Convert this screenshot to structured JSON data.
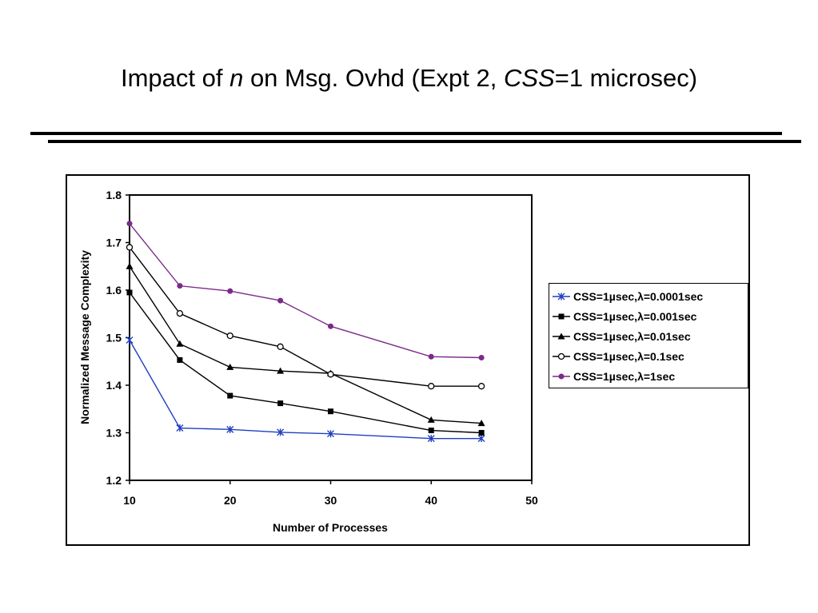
{
  "slide": {
    "title_part1": "Impact of ",
    "title_italic_n": "n",
    "title_part2": " on Msg. Ovhd (Expt 2, ",
    "title_italic_css": "CSS",
    "title_part3": "=1 microsec)"
  },
  "chart_data": {
    "type": "line",
    "title": "",
    "xlabel": "Number of Processes",
    "ylabel": "Normalized Message Complexity",
    "xlim": [
      10,
      50
    ],
    "ylim": [
      1.2,
      1.8
    ],
    "xticks": [
      "10",
      "20",
      "30",
      "40",
      "50"
    ],
    "yticks": [
      "1.2",
      "1.3",
      "1.4",
      "1.5",
      "1.6",
      "1.7",
      "1.8"
    ],
    "x": [
      10,
      15,
      20,
      25,
      30,
      40,
      45
    ],
    "legend_position": "right",
    "series": [
      {
        "name": "CSS=1µsec,λ=0.0001sec",
        "color": "#1f3fbf",
        "marker": "star",
        "values": [
          1.495,
          1.31,
          1.307,
          1.301,
          1.298,
          1.288,
          1.288
        ]
      },
      {
        "name": "CSS=1µsec,λ=0.001sec",
        "color": "#000000",
        "marker": "square",
        "values": [
          1.595,
          1.453,
          1.378,
          1.362,
          1.345,
          1.305,
          1.3
        ]
      },
      {
        "name": "CSS=1µsec,λ=0.01sec",
        "color": "#000000",
        "marker": "triangle",
        "values": [
          1.65,
          1.487,
          1.438,
          1.43,
          1.425,
          1.327,
          1.32
        ]
      },
      {
        "name": "CSS=1µsec,λ=0.1sec",
        "color": "#000000",
        "marker": "circle",
        "values": [
          1.69,
          1.551,
          1.504,
          1.481,
          1.423,
          1.398,
          1.398
        ]
      },
      {
        "name": "CSS=1µsec,λ=1sec",
        "color": "#7b2a8a",
        "marker": "dot",
        "values": [
          1.74,
          1.609,
          1.598,
          1.578,
          1.524,
          1.46,
          1.458
        ]
      }
    ]
  }
}
